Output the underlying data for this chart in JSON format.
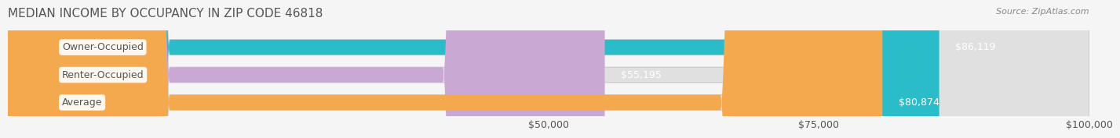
{
  "title": "MEDIAN INCOME BY OCCUPANCY IN ZIP CODE 46818",
  "source": "Source: ZipAtlas.com",
  "categories": [
    "Owner-Occupied",
    "Renter-Occupied",
    "Average"
  ],
  "values": [
    86119,
    55195,
    80874
  ],
  "labels": [
    "$86,119",
    "$55,195",
    "$80,874"
  ],
  "bar_colors": [
    "#2bbcca",
    "#c9a8d4",
    "#f5a94e"
  ],
  "bar_bg_color": "#e8e8e8",
  "xlim": [
    0,
    100000
  ],
  "xticks": [
    50000,
    75000,
    100000
  ],
  "xticklabels": [
    "$50,000",
    "$75,000",
    "$100,000"
  ],
  "title_fontsize": 11,
  "source_fontsize": 8,
  "label_fontsize": 9,
  "tick_fontsize": 9,
  "bar_height": 0.55,
  "background_color": "#f5f5f5"
}
